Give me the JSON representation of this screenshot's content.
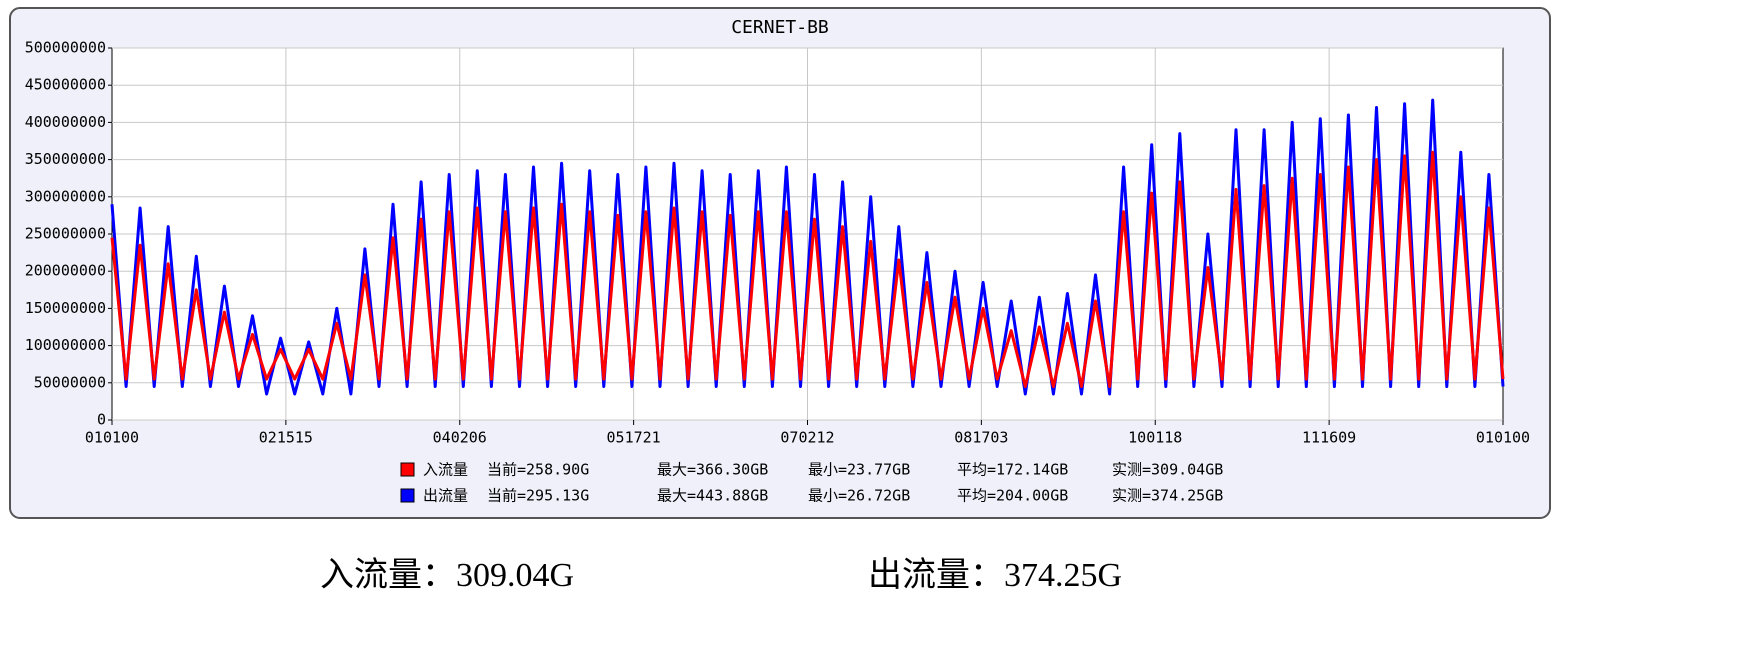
{
  "chart_data": {
    "type": "line",
    "title": "CERNET-BB",
    "xtick_labels": [
      "010100",
      "021515",
      "040206",
      "051721",
      "070212",
      "081703",
      "100118",
      "111609",
      "010100"
    ],
    "ylim": [
      0,
      500000000
    ],
    "yticks": [
      0,
      50000000,
      100000000,
      150000000,
      200000000,
      250000000,
      300000000,
      350000000,
      400000000,
      450000000,
      500000000
    ],
    "grid": true,
    "series": [
      {
        "name": "入流量",
        "color": "#ff0000",
        "stats": [
          "当前=258.90G",
          "最大=366.30GB",
          "最小=23.77GB",
          "平均=172.14GB",
          "实测=309.04GB"
        ],
        "values": [
          245000000,
          55000000,
          235000000,
          55000000,
          210000000,
          55000000,
          175000000,
          55000000,
          145000000,
          55000000,
          115000000,
          55000000,
          95000000,
          55000000,
          95000000,
          55000000,
          130000000,
          55000000,
          195000000,
          55000000,
          245000000,
          55000000,
          270000000,
          55000000,
          280000000,
          55000000,
          285000000,
          55000000,
          280000000,
          55000000,
          285000000,
          55000000,
          290000000,
          55000000,
          280000000,
          55000000,
          275000000,
          55000000,
          280000000,
          55000000,
          285000000,
          55000000,
          280000000,
          55000000,
          275000000,
          55000000,
          280000000,
          55000000,
          280000000,
          55000000,
          270000000,
          55000000,
          260000000,
          55000000,
          240000000,
          55000000,
          215000000,
          55000000,
          185000000,
          55000000,
          165000000,
          55000000,
          150000000,
          55000000,
          120000000,
          45000000,
          125000000,
          45000000,
          130000000,
          45000000,
          160000000,
          45000000,
          280000000,
          55000000,
          305000000,
          55000000,
          320000000,
          55000000,
          205000000,
          55000000,
          310000000,
          55000000,
          315000000,
          55000000,
          325000000,
          55000000,
          330000000,
          55000000,
          340000000,
          55000000,
          350000000,
          55000000,
          355000000,
          55000000,
          360000000,
          55000000,
          300000000,
          55000000,
          285000000,
          55000000
        ]
      },
      {
        "name": "出流量",
        "color": "#0000ff",
        "stats": [
          "当前=295.13G",
          "最大=443.88GB",
          "最小=26.72GB",
          "平均=204.00GB",
          "实测=374.25GB"
        ],
        "values": [
          290000000,
          45000000,
          285000000,
          45000000,
          260000000,
          45000000,
          220000000,
          45000000,
          180000000,
          45000000,
          140000000,
          35000000,
          110000000,
          35000000,
          105000000,
          35000000,
          150000000,
          35000000,
          230000000,
          45000000,
          290000000,
          45000000,
          320000000,
          45000000,
          330000000,
          45000000,
          335000000,
          45000000,
          330000000,
          45000000,
          340000000,
          45000000,
          345000000,
          45000000,
          335000000,
          45000000,
          330000000,
          45000000,
          340000000,
          45000000,
          345000000,
          45000000,
          335000000,
          45000000,
          330000000,
          45000000,
          335000000,
          45000000,
          340000000,
          45000000,
          330000000,
          45000000,
          320000000,
          45000000,
          300000000,
          45000000,
          260000000,
          45000000,
          225000000,
          45000000,
          200000000,
          45000000,
          185000000,
          45000000,
          160000000,
          35000000,
          165000000,
          35000000,
          170000000,
          35000000,
          195000000,
          35000000,
          340000000,
          45000000,
          370000000,
          45000000,
          385000000,
          45000000,
          250000000,
          45000000,
          390000000,
          45000000,
          390000000,
          45000000,
          400000000,
          45000000,
          405000000,
          45000000,
          410000000,
          45000000,
          420000000,
          45000000,
          425000000,
          45000000,
          430000000,
          45000000,
          360000000,
          45000000,
          330000000,
          45000000
        ]
      }
    ],
    "captions": [
      "入流量：309.04G",
      "出流量：374.25G"
    ]
  }
}
